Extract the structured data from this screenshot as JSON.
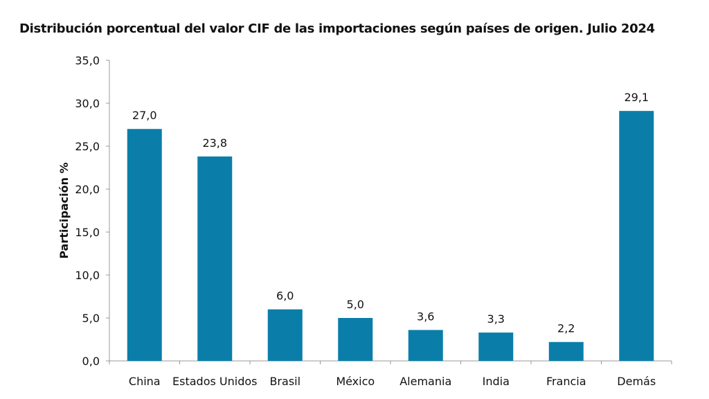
{
  "chart_data": {
    "type": "bar",
    "title": "Distribución porcentual del valor CIF de las importaciones según países de origen. Julio 2024",
    "xlabel": "",
    "ylabel": "Participación  %",
    "categories": [
      "China",
      "Estados Unidos",
      "Brasil",
      "México",
      "Alemania",
      "India",
      "Francia",
      "Demás"
    ],
    "values": [
      27.0,
      23.8,
      6.0,
      5.0,
      3.6,
      3.3,
      2.2,
      29.1
    ],
    "data_labels": [
      "27,0",
      "23,8",
      "6,0",
      "5,0",
      "3,6",
      "3,3",
      "2,2",
      "29,1"
    ],
    "ylim": [
      0,
      35
    ],
    "yticks": [
      "0,0",
      "5,0",
      "10,0",
      "15,0",
      "20,0",
      "25,0",
      "30,0",
      "35,0"
    ],
    "grid": false,
    "legend": "none",
    "bar_color": "#0a7ea9"
  }
}
